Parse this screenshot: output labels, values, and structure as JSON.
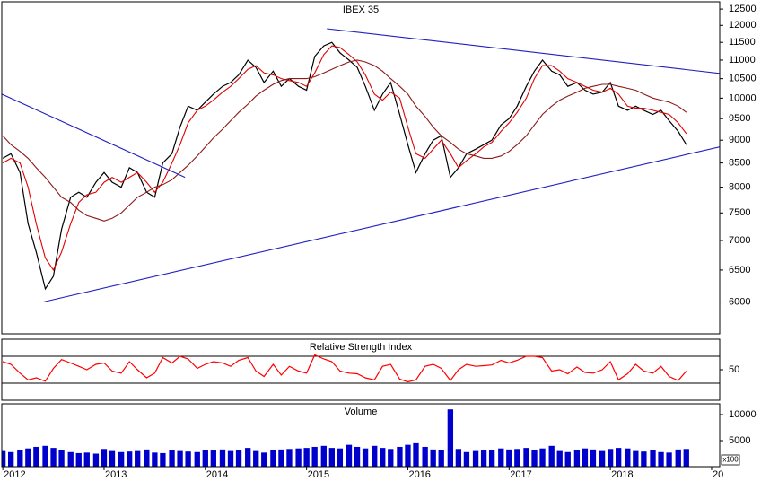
{
  "chart_data": [
    {
      "type": "line",
      "title": "IBEX 35",
      "log_scale": true,
      "x": [
        2012,
        2012.08,
        2012.17,
        2012.25,
        2012.33,
        2012.42,
        2012.5,
        2012.58,
        2012.67,
        2012.75,
        2012.83,
        2012.92,
        2013,
        2013.08,
        2013.17,
        2013.25,
        2013.33,
        2013.42,
        2013.5,
        2013.58,
        2013.67,
        2013.75,
        2013.83,
        2013.92,
        2014,
        2014.08,
        2014.17,
        2014.25,
        2014.33,
        2014.42,
        2014.5,
        2014.58,
        2014.67,
        2014.75,
        2014.83,
        2014.92,
        2015,
        2015.08,
        2015.17,
        2015.25,
        2015.33,
        2015.42,
        2015.5,
        2015.58,
        2015.67,
        2015.75,
        2015.83,
        2015.92,
        2016,
        2016.08,
        2016.17,
        2016.25,
        2016.33,
        2016.42,
        2016.5,
        2016.58,
        2016.67,
        2016.75,
        2016.83,
        2016.92,
        2017,
        2017.08,
        2017.17,
        2017.25,
        2017.33,
        2017.42,
        2017.5,
        2017.58,
        2017.67,
        2017.75,
        2017.83,
        2017.92,
        2018,
        2018.08,
        2018.17,
        2018.25,
        2018.33,
        2018.42,
        2018.5,
        2018.58,
        2018.67,
        2018.75
      ],
      "series": [
        {
          "color": "#000000",
          "values": [
            8600,
            8700,
            8300,
            7300,
            6800,
            6200,
            6400,
            7200,
            7800,
            7900,
            7800,
            8100,
            8300,
            8100,
            8000,
            8400,
            8300,
            7900,
            7800,
            8500,
            8700,
            9300,
            9800,
            9700,
            9900,
            10100,
            10300,
            10400,
            10600,
            11000,
            10800,
            10400,
            10700,
            10300,
            10500,
            10300,
            10200,
            11100,
            11400,
            11500,
            11200,
            11000,
            10800,
            10300,
            9700,
            10100,
            10400,
            9600,
            8900,
            8300,
            8700,
            9000,
            9100,
            8200,
            8400,
            8700,
            8800,
            8900,
            9000,
            9350,
            9500,
            9800,
            10300,
            10700,
            11000,
            10700,
            10600,
            10300,
            10400,
            10200,
            10100,
            10150,
            10400,
            9800,
            9700,
            9800,
            9700,
            9600,
            9700,
            9450,
            9200,
            8900
          ]
        },
        {
          "color": "#e00000",
          "values": [
            8500,
            8600,
            8500,
            8000,
            7300,
            6700,
            6500,
            6800,
            7300,
            7700,
            7850,
            7900,
            8100,
            8200,
            8100,
            8200,
            8300,
            8100,
            7900,
            8100,
            8500,
            8900,
            9400,
            9700,
            9800,
            9950,
            10150,
            10300,
            10500,
            10750,
            10850,
            10650,
            10600,
            10500,
            10450,
            10400,
            10300,
            10650,
            11150,
            11400,
            11350,
            11150,
            10950,
            10600,
            10100,
            9950,
            10150,
            10000,
            9300,
            8700,
            8600,
            8800,
            9000,
            8700,
            8400,
            8550,
            8700,
            8850,
            8950,
            9200,
            9400,
            9650,
            10000,
            10500,
            10850,
            10850,
            10700,
            10500,
            10400,
            10300,
            10200,
            10150,
            10250,
            10100,
            9800,
            9750,
            9750,
            9700,
            9650,
            9600,
            9400,
            9150
          ]
        },
        {
          "color": "#8b1a1a",
          "values": [
            9100,
            8900,
            8750,
            8600,
            8400,
            8200,
            8000,
            7800,
            7700,
            7550,
            7450,
            7400,
            7350,
            7400,
            7500,
            7650,
            7800,
            7900,
            8000,
            8050,
            8150,
            8300,
            8450,
            8650,
            8850,
            9050,
            9250,
            9450,
            9650,
            9850,
            10050,
            10200,
            10350,
            10450,
            10500,
            10500,
            10500,
            10550,
            10650,
            10750,
            10850,
            10950,
            11000,
            10950,
            10850,
            10700,
            10500,
            10300,
            10100,
            9800,
            9550,
            9300,
            9100,
            8950,
            8800,
            8700,
            8650,
            8600,
            8600,
            8650,
            8750,
            8900,
            9100,
            9350,
            9600,
            9800,
            9950,
            10050,
            10150,
            10250,
            10300,
            10350,
            10350,
            10300,
            10250,
            10200,
            10100,
            10000,
            9950,
            9900,
            9800,
            9650
          ]
        }
      ],
      "trendlines": [
        {
          "color": "#2020c0",
          "x": [
            2015.2,
            2019.08
          ],
          "y": [
            11900,
            10640
          ]
        },
        {
          "color": "#2020c0",
          "x": [
            2012.4,
            2019.08
          ],
          "y": [
            6000,
            8850
          ]
        },
        {
          "color": "#2020c0",
          "x": [
            2011.99,
            2013.8
          ],
          "y": [
            10100,
            8200
          ]
        }
      ],
      "xlim": [
        2011.99,
        2019.08
      ],
      "ylim": [
        5540,
        12730
      ],
      "yticks": [
        6000,
        6500,
        7000,
        7500,
        8000,
        8500,
        9000,
        9500,
        10000,
        10500,
        11000,
        11500,
        12000,
        12500
      ]
    },
    {
      "type": "line",
      "title": "Relative Strength Index",
      "x": [
        2012,
        2012.08,
        2012.17,
        2012.25,
        2012.33,
        2012.42,
        2012.5,
        2012.58,
        2012.67,
        2012.75,
        2012.83,
        2012.92,
        2013,
        2013.08,
        2013.17,
        2013.25,
        2013.33,
        2013.42,
        2013.5,
        2013.58,
        2013.67,
        2013.75,
        2013.83,
        2013.92,
        2014,
        2014.08,
        2014.17,
        2014.25,
        2014.33,
        2014.42,
        2014.5,
        2014.58,
        2014.67,
        2014.75,
        2014.83,
        2014.92,
        2015,
        2015.08,
        2015.17,
        2015.25,
        2015.33,
        2015.42,
        2015.5,
        2015.58,
        2015.67,
        2015.75,
        2015.83,
        2015.92,
        2016,
        2016.08,
        2016.17,
        2016.25,
        2016.33,
        2016.42,
        2016.5,
        2016.58,
        2016.67,
        2016.75,
        2016.83,
        2016.92,
        2017,
        2017.08,
        2017.17,
        2017.25,
        2017.33,
        2017.42,
        2017.5,
        2017.58,
        2017.67,
        2017.75,
        2017.83,
        2017.92,
        2018,
        2018.08,
        2018.17,
        2018.25,
        2018.33,
        2018.42,
        2018.5,
        2018.58,
        2018.67,
        2018.75
      ],
      "series": [
        {
          "color": "#ff0000",
          "values": [
            62,
            58,
            45,
            35,
            38,
            33,
            52,
            65,
            60,
            55,
            50,
            58,
            60,
            48,
            45,
            62,
            50,
            38,
            45,
            68,
            60,
            70,
            66,
            52,
            58,
            62,
            60,
            55,
            64,
            68,
            48,
            40,
            58,
            42,
            55,
            48,
            45,
            72,
            66,
            62,
            48,
            45,
            44,
            38,
            35,
            55,
            58,
            36,
            32,
            35,
            55,
            58,
            52,
            34,
            50,
            58,
            55,
            56,
            57,
            64,
            60,
            64,
            70,
            70,
            68,
            48,
            50,
            44,
            54,
            46,
            45,
            50,
            62,
            35,
            44,
            58,
            48,
            45,
            55,
            40,
            34,
            48
          ]
        }
      ],
      "reference_lines": [
        70,
        30
      ],
      "xlim": [
        2011.99,
        2019.08
      ],
      "ylim": [
        4.7,
        95.3
      ],
      "yticks": [
        50
      ]
    },
    {
      "type": "bar",
      "title": "Volume",
      "annotation": "x100",
      "color": "#0000cc",
      "x": [
        2012,
        2012.08,
        2012.17,
        2012.25,
        2012.33,
        2012.42,
        2012.5,
        2012.58,
        2012.67,
        2012.75,
        2012.83,
        2012.92,
        2013,
        2013.08,
        2013.17,
        2013.25,
        2013.33,
        2013.42,
        2013.5,
        2013.58,
        2013.67,
        2013.75,
        2013.83,
        2013.92,
        2014,
        2014.08,
        2014.17,
        2014.25,
        2014.33,
        2014.42,
        2014.5,
        2014.58,
        2014.67,
        2014.75,
        2014.83,
        2014.92,
        2015,
        2015.08,
        2015.17,
        2015.25,
        2015.33,
        2015.42,
        2015.5,
        2015.58,
        2015.67,
        2015.75,
        2015.83,
        2015.92,
        2016,
        2016.08,
        2016.17,
        2016.25,
        2016.33,
        2016.42,
        2016.5,
        2016.58,
        2016.67,
        2016.75,
        2016.83,
        2016.92,
        2017,
        2017.08,
        2017.17,
        2017.25,
        2017.33,
        2017.42,
        2017.5,
        2017.58,
        2017.67,
        2017.75,
        2017.83,
        2017.92,
        2018,
        2018.08,
        2018.17,
        2018.25,
        2018.33,
        2018.42,
        2018.5,
        2018.58,
        2018.67,
        2018.75
      ],
      "values": [
        3000,
        2800,
        3200,
        3500,
        3800,
        4000,
        3600,
        3200,
        2800,
        2600,
        2700,
        2500,
        3400,
        3000,
        2800,
        2900,
        3000,
        3300,
        2700,
        2600,
        3100,
        3000,
        2900,
        2800,
        3200,
        3100,
        3300,
        3000,
        3100,
        3600,
        3000,
        2700,
        3200,
        3300,
        3400,
        3500,
        3600,
        3800,
        4000,
        3600,
        3500,
        4200,
        3800,
        3500,
        4000,
        3600,
        3400,
        3800,
        4200,
        4500,
        3800,
        3300,
        3200,
        11000,
        3400,
        2800,
        3000,
        3100,
        3200,
        3500,
        3300,
        3400,
        3600,
        3200,
        3500,
        4000,
        3000,
        2800,
        3200,
        3500,
        3300,
        3000,
        3400,
        3600,
        3500,
        3000,
        2900,
        3200,
        2800,
        2700,
        3300,
        3400
      ],
      "xlim": [
        2011.99,
        2019.08
      ],
      "ylim": [
        0,
        12070
      ],
      "yticks": [
        5000,
        10000
      ],
      "xticks": [
        2012,
        2013,
        2014,
        2015,
        2016,
        2017,
        2018,
        {
          "value": 2019,
          "label": "20"
        }
      ]
    }
  ]
}
